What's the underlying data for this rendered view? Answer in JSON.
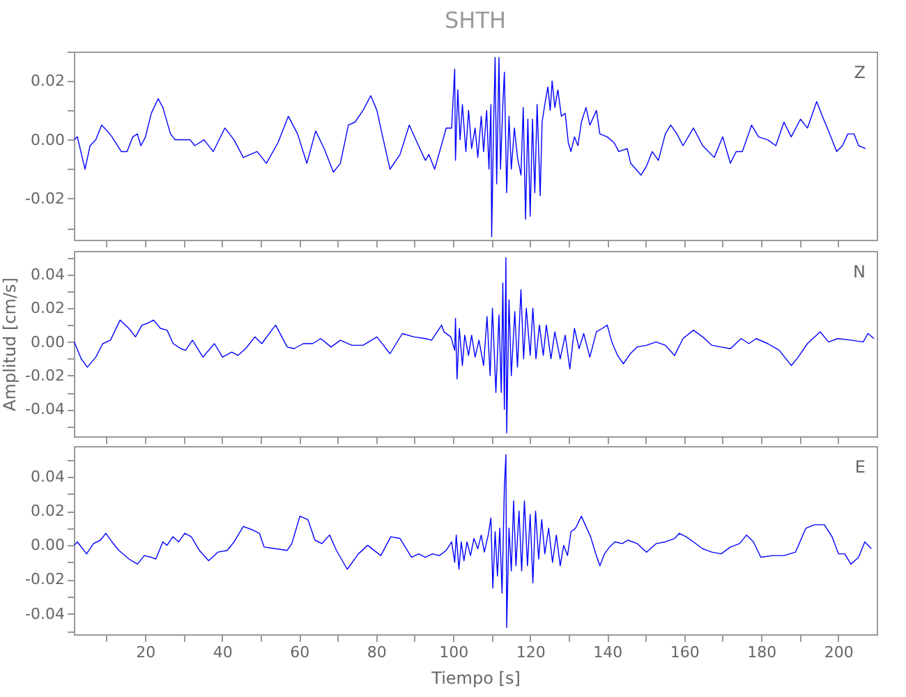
{
  "chart_data": [
    {
      "type": "line",
      "title": "SHTH",
      "tick_labels": "y",
      "xlim": [
        1.5,
        210
      ],
      "ylim": [
        -0.034,
        0.03
      ],
      "xticks": [
        {
          "value": 10,
          "label": null
        },
        {
          "value": 20,
          "label": null
        },
        {
          "value": 30,
          "label": null
        },
        {
          "value": 40,
          "label": null
        },
        {
          "value": 50,
          "label": null
        },
        {
          "value": 60,
          "label": null
        },
        {
          "value": 70,
          "label": null
        },
        {
          "value": 80,
          "label": null
        },
        {
          "value": 90,
          "label": null
        },
        {
          "value": 100,
          "label": null
        },
        {
          "value": 110,
          "label": null
        },
        {
          "value": 120,
          "label": null
        },
        {
          "value": 130,
          "label": null
        },
        {
          "value": 140,
          "label": null
        },
        {
          "value": 150,
          "label": null
        },
        {
          "value": 160,
          "label": null
        },
        {
          "value": 170,
          "label": null
        },
        {
          "value": 180,
          "label": null
        },
        {
          "value": 190,
          "label": null
        },
        {
          "value": 200,
          "label": null
        }
      ],
      "yticks": [
        {
          "value": -0.03,
          "label": null
        },
        -0.02,
        {
          "value": -0.01,
          "label": null
        },
        {
          "value": 0,
          "label": "0.00"
        },
        {
          "value": 0.01,
          "label": null
        },
        0.02,
        {
          "value": 0.03,
          "label": null
        }
      ],
      "x": [
        1.6,
        2.4,
        4.4,
        5.7,
        7.2,
        8.7,
        10.2,
        11.4,
        13.8,
        15.3,
        16.8,
        18,
        18.9,
        20.1,
        21.6,
        23.4,
        24.6,
        26.6,
        27.8,
        31.7,
        32.9,
        35.3,
        37.7,
        40.7,
        43.1,
        45.5,
        49.1,
        51.5,
        54.5,
        57.2,
        59.6,
        62,
        64.3,
        66.5,
        68.9,
        70.7,
        72.8,
        74.5,
        76.6,
        78.6,
        80.2,
        81.7,
        83.6,
        86.2,
        88.6,
        91,
        92.8,
        93.7,
        95.2,
        98.2,
        99.6,
        100.4,
        100.6,
        101.2,
        101.8,
        102.4,
        103.3,
        104,
        104.8,
        105.7,
        106.4,
        107.3,
        107.9,
        108.7,
        109.3,
        109.8,
        110,
        110.5,
        110.9,
        111.3,
        111.9,
        112.3,
        112.9,
        113.3,
        113.9,
        114.5,
        115.1,
        115.9,
        116.7,
        117.6,
        118.2,
        118.8,
        119.4,
        120,
        120.6,
        121.2,
        121.8,
        122.6,
        123.1,
        123.8,
        124.6,
        125.2,
        125.7,
        126.4,
        127.2,
        128.1,
        129.1,
        129.9,
        130.6,
        131.5,
        132.4,
        133.3,
        134.5,
        135.5,
        137.2,
        138.1,
        140,
        141.8,
        143,
        145.2,
        146.1,
        148.8,
        150.2,
        151.7,
        153.3,
        155.1,
        156.5,
        158.1,
        159.7,
        162.4,
        164.8,
        167.8,
        170,
        172,
        173.5,
        175.1,
        177.5,
        179.3,
        181.7,
        183.8,
        185.9,
        187.8,
        190.2,
        192,
        194.4,
        196.2,
        197.5,
        199.6,
        201.1,
        202.5,
        204.1,
        205.3,
        207.1
      ],
      "series": [
        {
          "name": "Z",
          "color": "#0000ff",
          "values": [
            0.0,
            0.001,
            -0.01,
            -0.002,
            0.0,
            0.005,
            0.003,
            0.001,
            -0.004,
            -0.004,
            0.001,
            0.002,
            -0.002,
            0.001,
            0.009,
            0.014,
            0.011,
            0.002,
            0.0,
            0.0,
            -0.002,
            0.0,
            -0.004,
            0.004,
            0.0,
            -0.006,
            -0.004,
            -0.008,
            -0.001,
            0.008,
            0.002,
            -0.008,
            0.003,
            -0.003,
            -0.011,
            -0.008,
            0.005,
            0.006,
            0.01,
            0.015,
            0.01,
            0.001,
            -0.01,
            -0.005,
            0.005,
            -0.002,
            -0.007,
            -0.005,
            -0.01,
            0.004,
            0.004,
            0.024,
            -0.007,
            0.017,
            0.0,
            0.012,
            -0.004,
            0.01,
            -0.003,
            0.004,
            -0.006,
            0.008,
            -0.004,
            0.01,
            -0.01,
            0.012,
            -0.033,
            0.005,
            0.028,
            -0.015,
            0.028,
            -0.01,
            0.012,
            0.023,
            -0.018,
            0.008,
            -0.01,
            0.004,
            -0.006,
            -0.012,
            0.011,
            -0.027,
            0.007,
            -0.026,
            0.007,
            -0.018,
            0.012,
            -0.019,
            0.006,
            0.012,
            0.018,
            0.01,
            0.02,
            0.011,
            0.017,
            0.008,
            0.009,
            -0.001,
            -0.004,
            0.001,
            -0.002,
            0.006,
            0.011,
            0.005,
            0.01,
            0.002,
            0.001,
            -0.001,
            -0.004,
            -0.003,
            -0.008,
            -0.012,
            -0.009,
            -0.004,
            -0.007,
            0.002,
            0.005,
            0.002,
            -0.002,
            0.004,
            -0.002,
            -0.006,
            0.001,
            -0.008,
            -0.004,
            -0.004,
            0.005,
            0.001,
            0.0,
            -0.002,
            0.006,
            0.001,
            0.007,
            0.004,
            0.013,
            0.007,
            0.003,
            -0.004,
            -0.002,
            0.002,
            0.002,
            -0.002,
            -0.003
          ]
        }
      ]
    },
    {
      "type": "line",
      "ylabel": "Amplitud [cm/s]",
      "tick_labels": "y",
      "xlim": [
        1.5,
        210
      ],
      "ylim": [
        -0.056,
        0.054
      ],
      "xticks": [
        {
          "value": 10,
          "label": null
        },
        {
          "value": 20,
          "label": null
        },
        {
          "value": 30,
          "label": null
        },
        {
          "value": 40,
          "label": null
        },
        {
          "value": 50,
          "label": null
        },
        {
          "value": 60,
          "label": null
        },
        {
          "value": 70,
          "label": null
        },
        {
          "value": 80,
          "label": null
        },
        {
          "value": 90,
          "label": null
        },
        {
          "value": 100,
          "label": null
        },
        {
          "value": 110,
          "label": null
        },
        {
          "value": 120,
          "label": null
        },
        {
          "value": 130,
          "label": null
        },
        {
          "value": 140,
          "label": null
        },
        {
          "value": 150,
          "label": null
        },
        {
          "value": 160,
          "label": null
        },
        {
          "value": 170,
          "label": null
        },
        {
          "value": 180,
          "label": null
        },
        {
          "value": 190,
          "label": null
        },
        {
          "value": 200,
          "label": null
        }
      ],
      "yticks": [
        {
          "value": -0.05,
          "label": null
        },
        -0.04,
        {
          "value": -0.03,
          "label": null
        },
        -0.02,
        {
          "value": -0.01,
          "label": null
        },
        {
          "value": 0,
          "label": "0.00"
        },
        {
          "value": 0.01,
          "label": null
        },
        0.02,
        {
          "value": 0.03,
          "label": null
        },
        0.04,
        {
          "value": 0.05,
          "label": null
        }
      ],
      "x": [
        1.6,
        3.4,
        5,
        7.2,
        9,
        11,
        13.5,
        15.8,
        17.5,
        19.2,
        20.6,
        22.2,
        24,
        25.7,
        27.3,
        29.3,
        30.5,
        32.3,
        35,
        38,
        40.1,
        42.5,
        44.1,
        46.1,
        48.5,
        50.3,
        53.9,
        56.9,
        58.7,
        61.1,
        63.5,
        65.6,
        68.3,
        70.7,
        73.7,
        76.6,
        80.2,
        83.6,
        86.8,
        89.8,
        92.8,
        94.4,
        97,
        97.6,
        99.4,
        100.4,
        100.6,
        101,
        101.6,
        102.4,
        103,
        104,
        104.8,
        105.7,
        106.7,
        107.9,
        108.8,
        109.6,
        110.2,
        111.1,
        111.9,
        112.5,
        112.9,
        113.3,
        113.7,
        113.9,
        114.5,
        115.1,
        116,
        116.7,
        117.6,
        118.3,
        119,
        120,
        120.7,
        121.5,
        122.4,
        123.4,
        124.2,
        125.4,
        126.4,
        127.8,
        129.1,
        130.3,
        131.5,
        132.7,
        133.9,
        135.5,
        137.2,
        138.7,
        140,
        141.2,
        142.7,
        144.2,
        146,
        147.8,
        150.2,
        152.7,
        155.1,
        157.5,
        159.7,
        162.4,
        164.8,
        167.2,
        169.6,
        172,
        174.8,
        176.8,
        178.7,
        181.7,
        184.7,
        187.8,
        189.6,
        192,
        195.3,
        197.5,
        199.9,
        203.5,
        206.5,
        207.7,
        209.3
      ],
      "series": [
        {
          "name": "N",
          "color": "#0000ff",
          "values": [
            0.0,
            -0.01,
            -0.015,
            -0.009,
            -0.001,
            0.001,
            0.013,
            0.008,
            0.003,
            0.01,
            0.011,
            0.013,
            0.008,
            0.007,
            -0.001,
            -0.004,
            -0.005,
            0.001,
            -0.009,
            -0.001,
            -0.009,
            -0.006,
            -0.008,
            -0.004,
            0.003,
            -0.001,
            0.01,
            -0.003,
            -0.004,
            -0.001,
            -0.001,
            0.002,
            -0.003,
            0.001,
            -0.002,
            -0.002,
            0.003,
            -0.007,
            0.005,
            0.003,
            0.002,
            0.001,
            0.01,
            0.006,
            0.003,
            -0.005,
            0.014,
            -0.022,
            0.008,
            -0.014,
            0.004,
            -0.008,
            0.004,
            -0.009,
            0.001,
            -0.014,
            0.015,
            -0.02,
            0.02,
            -0.03,
            0.016,
            -0.03,
            0.035,
            -0.04,
            0.05,
            -0.054,
            0.025,
            -0.02,
            0.018,
            -0.015,
            0.031,
            -0.01,
            0.02,
            -0.008,
            0.02,
            -0.01,
            0.01,
            -0.008,
            0.01,
            -0.01,
            0.006,
            -0.01,
            0.004,
            -0.016,
            0.008,
            -0.004,
            0.005,
            -0.009,
            0.006,
            0.008,
            0.01,
            0.0,
            -0.008,
            -0.013,
            -0.007,
            -0.003,
            -0.002,
            0.0,
            -0.002,
            -0.008,
            0.002,
            0.007,
            0.003,
            -0.002,
            -0.003,
            -0.004,
            0.002,
            -0.001,
            0.002,
            -0.001,
            -0.005,
            -0.014,
            -0.009,
            -0.001,
            0.006,
            0.0,
            0.002,
            0.001,
            0.0,
            0.005,
            0.002
          ]
        }
      ]
    },
    {
      "type": "line",
      "xlabel": "Tiempo [s]",
      "xlim": [
        1.5,
        210
      ],
      "ylim": [
        -0.052,
        0.058
      ],
      "xticks": [
        {
          "value": 10,
          "label": null
        },
        20,
        {
          "value": 30,
          "label": null
        },
        40,
        {
          "value": 50,
          "label": null
        },
        60,
        {
          "value": 70,
          "label": null
        },
        80,
        {
          "value": 90,
          "label": null
        },
        100,
        {
          "value": 110,
          "label": null
        },
        120,
        {
          "value": 130,
          "label": null
        },
        140,
        {
          "value": 150,
          "label": null
        },
        160,
        {
          "value": 170,
          "label": null
        },
        180,
        {
          "value": 190,
          "label": null
        },
        200
      ],
      "yticks": [
        {
          "value": -0.05,
          "label": null
        },
        -0.04,
        {
          "value": -0.03,
          "label": null
        },
        -0.02,
        {
          "value": -0.01,
          "label": null
        },
        {
          "value": 0,
          "label": "0.00"
        },
        {
          "value": 0.01,
          "label": null
        },
        0.02,
        {
          "value": 0.03,
          "label": null
        },
        0.04,
        {
          "value": 0.05,
          "label": null
        }
      ],
      "x": [
        1.6,
        2.4,
        4.8,
        6.6,
        8.4,
        9.8,
        11.4,
        13.2,
        15.8,
        18,
        19.8,
        21.6,
        22.8,
        24.6,
        25.7,
        27.2,
        28.7,
        30.3,
        32,
        34.1,
        36.5,
        38.9,
        41.3,
        43.1,
        45.5,
        47.9,
        49.7,
        50.9,
        53.9,
        56.9,
        58.1,
        60.2,
        62.3,
        64.1,
        65.9,
        67.9,
        69.7,
        72.5,
        75.4,
        77.8,
        81.2,
        83.8,
        86.2,
        89.2,
        91,
        92.8,
        94.6,
        96.4,
        98.2,
        99.6,
        100.4,
        100.8,
        101.5,
        102.1,
        102.8,
        103.6,
        104.5,
        105.4,
        106.4,
        107.3,
        108.1,
        109.1,
        109.8,
        110.3,
        110.9,
        111.5,
        112.1,
        112.7,
        113.3,
        113.7,
        113.9,
        114.5,
        115.1,
        115.7,
        116.3,
        117.1,
        117.8,
        118.5,
        119.3,
        120,
        120.7,
        121.4,
        122.2,
        123,
        123.8,
        124.8,
        125.8,
        126.8,
        127.8,
        128.7,
        129.7,
        130.6,
        131.8,
        133.3,
        134.5,
        135.7,
        136.9,
        138.1,
        139.3,
        140.6,
        142,
        143.9,
        145.4,
        147.8,
        150.2,
        152.7,
        155.1,
        157.5,
        158.7,
        160.5,
        162.4,
        164.8,
        167.2,
        169.6,
        172,
        174.4,
        176.2,
        178,
        179.9,
        182.9,
        185.9,
        188.9,
        191.6,
        193.8,
        196.4,
        198.4,
        200.1,
        201.7,
        203.3,
        205.3,
        206.9,
        208.6
      ],
      "series": [
        {
          "name": "E",
          "color": "#0000ff",
          "values": [
            0.0,
            0.002,
            -0.005,
            0.001,
            0.003,
            0.007,
            0.002,
            -0.003,
            -0.008,
            -0.011,
            -0.006,
            -0.007,
            -0.008,
            0.002,
            0.0,
            0.005,
            0.002,
            0.007,
            0.005,
            -0.003,
            -0.009,
            -0.004,
            -0.003,
            0.002,
            0.011,
            0.009,
            0.007,
            -0.001,
            -0.002,
            -0.003,
            0.001,
            0.017,
            0.015,
            0.003,
            0.001,
            0.006,
            -0.003,
            -0.014,
            -0.005,
            0.0,
            -0.006,
            0.005,
            0.004,
            -0.007,
            -0.005,
            -0.007,
            -0.005,
            -0.006,
            -0.003,
            0.002,
            -0.01,
            0.006,
            -0.014,
            0.002,
            -0.009,
            0.002,
            -0.006,
            0.004,
            -0.002,
            0.006,
            -0.004,
            0.006,
            0.016,
            -0.025,
            0.008,
            -0.018,
            0.01,
            -0.028,
            0.034,
            0.053,
            -0.048,
            0.01,
            -0.015,
            0.026,
            -0.012,
            0.02,
            -0.015,
            0.026,
            -0.012,
            0.018,
            -0.022,
            0.02,
            -0.008,
            0.015,
            -0.005,
            0.01,
            -0.01,
            0.006,
            -0.012,
            0.0,
            -0.006,
            0.008,
            0.01,
            0.017,
            0.011,
            0.005,
            -0.004,
            -0.012,
            -0.005,
            -0.001,
            0.002,
            0.001,
            0.003,
            0.001,
            -0.004,
            0.001,
            0.002,
            0.004,
            0.007,
            0.005,
            0.002,
            -0.002,
            -0.004,
            -0.005,
            -0.001,
            0.001,
            0.006,
            0.002,
            -0.007,
            -0.006,
            -0.006,
            -0.004,
            0.01,
            0.012,
            0.012,
            0.005,
            -0.005,
            -0.005,
            -0.011,
            -0.007,
            0.002,
            -0.002
          ]
        }
      ]
    }
  ]
}
